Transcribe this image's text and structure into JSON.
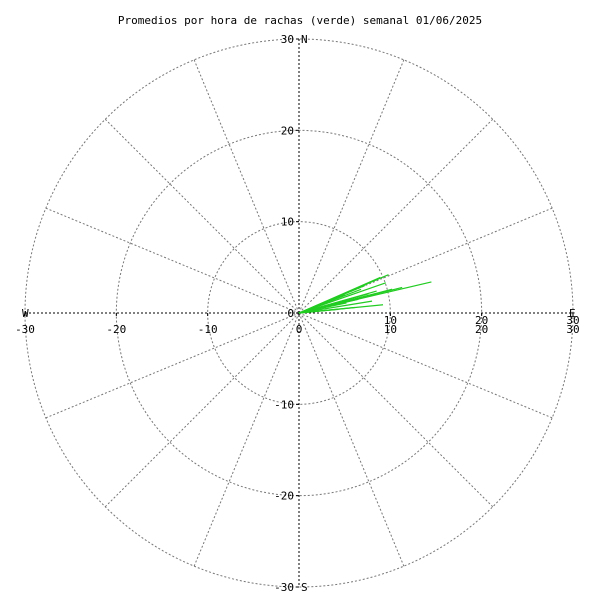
{
  "chart_data": {
    "type": "polar-vector",
    "title": "Promedios por hora de rachas (verde) semanal 01/06/2025",
    "r_max": 30,
    "rings": [
      10,
      20,
      30
    ],
    "spoke_step_deg": 22.5,
    "grid": true,
    "direction_labels": {
      "north": "N",
      "south": "S",
      "east": "E",
      "west": "W"
    },
    "axis_ticks": {
      "y": [
        "30",
        "20",
        "10",
        "0",
        "-10",
        "-20",
        "-30"
      ],
      "x": [
        "-30",
        "-20",
        "-10",
        "0",
        "10",
        "20",
        "30"
      ],
      "x_values": [
        -30,
        -20,
        -10,
        0,
        10,
        20,
        30
      ],
      "y_values": [
        30,
        20,
        10,
        0,
        -10,
        -20,
        -30
      ]
    },
    "colors": {
      "gust": "#22cc22",
      "grid": "#777777",
      "axis": "#000000"
    },
    "series": [
      {
        "vectors": [
          [
            14.5,
            3.4
          ],
          [
            9.8,
            4.2
          ],
          [
            8.9,
            3.9
          ],
          [
            10.2,
            2.6
          ],
          [
            11.3,
            2.8
          ],
          [
            7.6,
            2.1
          ],
          [
            6.5,
            1.5
          ],
          [
            8.0,
            1.3
          ],
          [
            9.2,
            0.9
          ],
          [
            6.1,
            0.6
          ],
          [
            4.3,
            0.4
          ],
          [
            5.2,
            1.1
          ],
          [
            3.1,
            0.7
          ],
          [
            8.5,
            2.4
          ],
          [
            7.2,
            3.0
          ],
          [
            9.5,
            3.3
          ],
          [
            6.8,
            2.6
          ],
          [
            5.0,
            2.0
          ]
        ]
      }
    ]
  }
}
